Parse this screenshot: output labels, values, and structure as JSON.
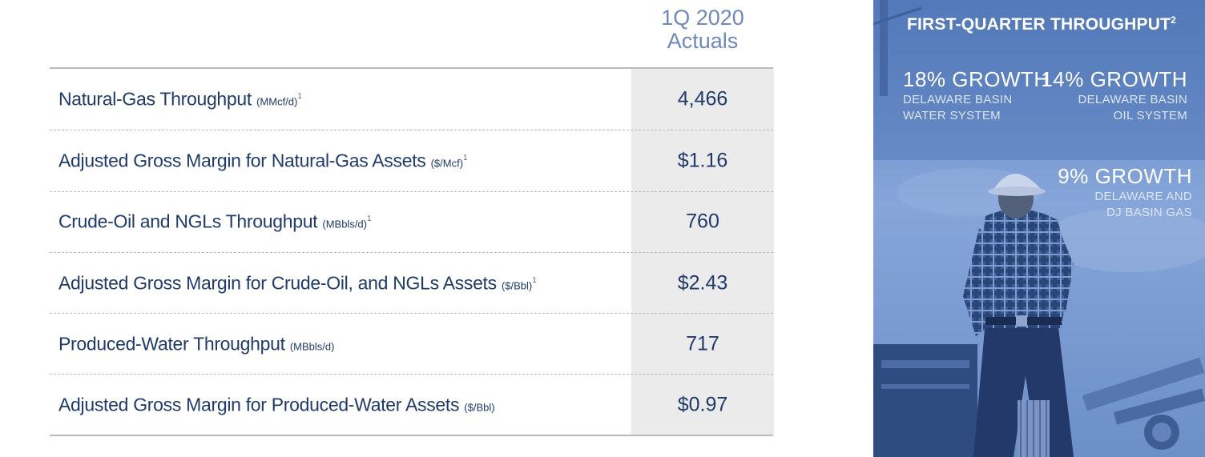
{
  "table": {
    "column_header": {
      "line1": "1Q 2020",
      "line2": "Actuals"
    },
    "rows": [
      {
        "label": "Natural-Gas Throughput",
        "unit": "(MMcf/d)",
        "sup": "1",
        "value": "4,466"
      },
      {
        "label": "Adjusted Gross Margin for Natural-Gas Assets",
        "unit": "($/Mcf)",
        "sup": "1",
        "value": "$1.16"
      },
      {
        "label": "Crude-Oil and NGLs Throughput",
        "unit": "(MBbls/d)",
        "sup": "1",
        "value": "760"
      },
      {
        "label": "Adjusted Gross Margin for Crude-Oil, and NGLs Assets",
        "unit": "($/Bbl)",
        "sup": "1",
        "value": "$2.43"
      },
      {
        "label": "Produced-Water Throughput",
        "unit": "(MBbls/d)",
        "sup": "",
        "value": "717"
      },
      {
        "label": "Adjusted Gross Margin for Produced-Water Assets",
        "unit": "($/Bbl)",
        "sup": "",
        "value": "$0.97"
      }
    ]
  },
  "panel": {
    "title": "FIRST-QUARTER THROUGHPUT",
    "title_sup": "2",
    "stats": [
      {
        "big": "18% GROWTH",
        "line1": "DELAWARE BASIN",
        "line2": "WATER SYSTEM"
      },
      {
        "big": "14% GROWTH",
        "line1": "DELAWARE BASIN",
        "line2": "OIL SYSTEM"
      },
      {
        "big": "9% GROWTH",
        "line1": "DELAWARE AND",
        "line2": "DJ BASIN GAS"
      }
    ]
  },
  "colors": {
    "text_navy": "#1f3a6b",
    "header_blue": "#6f8ab8",
    "value_column_bg": "#ebebeb",
    "panel_blue": "#6b8fc9"
  }
}
